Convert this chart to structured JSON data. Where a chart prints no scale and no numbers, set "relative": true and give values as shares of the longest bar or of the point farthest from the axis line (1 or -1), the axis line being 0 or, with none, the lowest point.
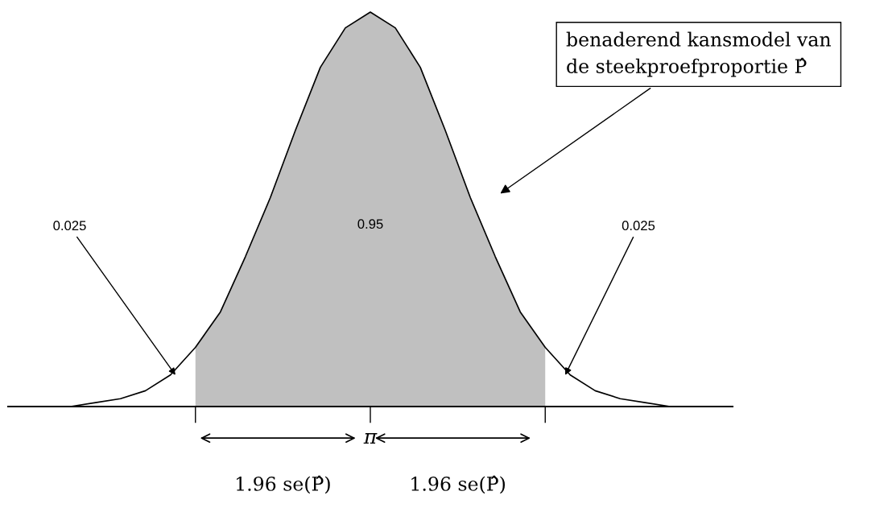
{
  "chart_data": {
    "type": "area",
    "relative": true,
    "categories": [
      null,
      null,
      null,
      null,
      null,
      null,
      null,
      null,
      null,
      null,
      null,
      null,
      null,
      null,
      null,
      null,
      null,
      null,
      null,
      null,
      null,
      null,
      null,
      null,
      null,
      null,
      null,
      null,
      null
    ],
    "series": [
      {
        "color": "#c0c0c0",
        "values": [
          null,
          null,
          null,
          null,
          null,
          null,
          null,
          0.15,
          0.24,
          0.38,
          0.53,
          0.7,
          0.86,
          0.96,
          1,
          0.96,
          0.86,
          0.7,
          0.53,
          0.38,
          0.24,
          0.15,
          null,
          null,
          null,
          null,
          null,
          null,
          null
        ]
      },
      {
        "type": "line",
        "color": "#000000",
        "values": [
          0.0,
          0.0,
          0.0,
          0.01,
          0.02,
          0.04,
          0.08,
          0.15,
          0.24,
          0.38,
          0.53,
          0.7,
          0.86,
          0.96,
          1,
          0.96,
          0.86,
          0.7,
          0.53,
          0.38,
          0.24,
          0.15,
          0.08,
          0.04,
          0.02,
          0.01,
          0.0,
          0.0,
          0.0
        ]
      }
    ],
    "annotations": [
      "benaderend kansmodel van\nde steekproefproportie P̂",
      "0.95",
      "0.025",
      "0.025",
      "π",
      "1.96 se(P̂)",
      "1.96 se(P̂)"
    ],
    "legend": false
  }
}
